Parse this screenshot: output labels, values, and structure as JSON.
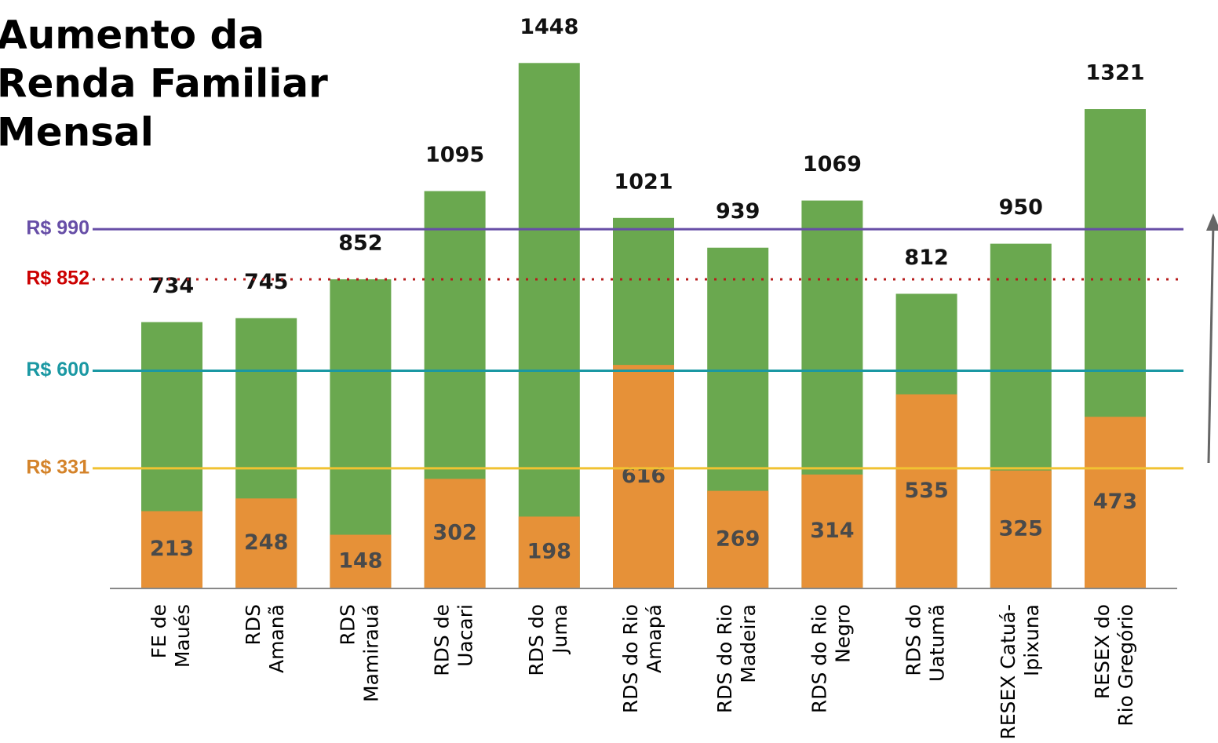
{
  "chart_data": {
    "type": "overlap_bar",
    "title": [
      "Aumento da",
      "Renda Familiar",
      "Mensal"
    ],
    "categories": [
      [
        "FE de",
        "Maués"
      ],
      [
        "RDS",
        "Amanã"
      ],
      [
        "RDS",
        "Mamirauá"
      ],
      [
        "RDS de",
        "Uacari"
      ],
      [
        "RDS do",
        "Juma"
      ],
      [
        "RDS do Rio",
        "Amapá"
      ],
      [
        "RDS do Rio",
        "Madeira"
      ],
      [
        "RDS do Rio",
        "Negro"
      ],
      [
        "RDS do",
        "Uatumã"
      ],
      [
        "RESEX Catuá-",
        "Ipixuna"
      ],
      [
        "RESEX do",
        "Rio Gregório"
      ]
    ],
    "series": [
      {
        "color": "#6aa84f",
        "values": [
          734,
          745,
          852,
          1095,
          1448,
          1021,
          939,
          1069,
          812,
          950,
          1321
        ]
      },
      {
        "color": "#e69138",
        "values": [
          213,
          248,
          148,
          302,
          198,
          616,
          269,
          314,
          535,
          325,
          473
        ]
      }
    ],
    "ylim": [
      0,
      1600
    ],
    "reference_lines": [
      {
        "value": 990,
        "label": "R$ 990",
        "color": "#674ea7",
        "label_color": "#674ea7",
        "style": "solid"
      },
      {
        "value": 852,
        "label": "R$ 852",
        "color": "#b71c1c",
        "label_color": "#cc0000",
        "style": "dotted"
      },
      {
        "value": 600,
        "label": "R$ 600",
        "color": "#1a98a3",
        "label_color": "#1a98a3",
        "style": "solid"
      },
      {
        "value": 331,
        "label": "R$ 331",
        "color": "#f1c232",
        "label_color": "#d4832a",
        "style": "solid"
      }
    ]
  }
}
